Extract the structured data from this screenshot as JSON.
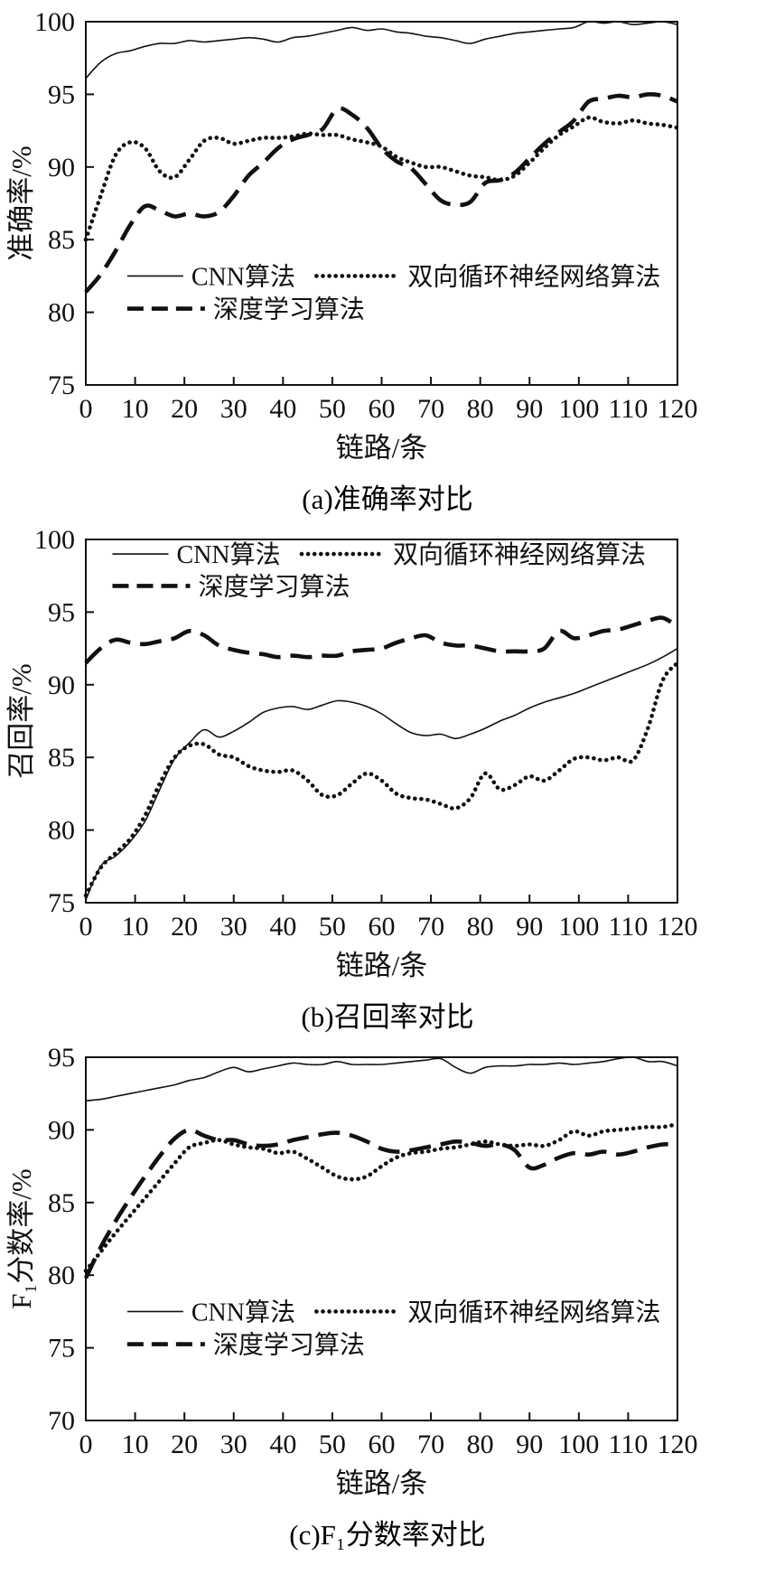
{
  "colors": {
    "line": "#111111",
    "text": "#000000",
    "background": "#ffffff"
  },
  "chart_data": [
    {
      "type": "line",
      "caption": "(a)准确率对比",
      "xlabel": "链路/条",
      "ylabel": "准确率/%",
      "xlim": [
        0,
        120
      ],
      "xtick_step": 10,
      "ylim": [
        75,
        100
      ],
      "ytick_step": 5,
      "grid": false,
      "legend": {
        "position": "inside-bottom-left",
        "x": 0.07,
        "y": 0.7,
        "row_gap": 0.09,
        "rows": [
          [
            0,
            1
          ],
          [
            2
          ]
        ]
      },
      "x": [
        0,
        3,
        6,
        9,
        12,
        15,
        18,
        21,
        24,
        27,
        30,
        33,
        36,
        39,
        42,
        45,
        48,
        51,
        54,
        57,
        60,
        63,
        66,
        69,
        72,
        75,
        78,
        81,
        84,
        87,
        90,
        93,
        96,
        99,
        102,
        105,
        108,
        111,
        114,
        117,
        120
      ],
      "series": [
        {
          "name": "CNN算法",
          "style": "solid",
          "values": [
            96.1,
            97.2,
            97.8,
            98.0,
            98.3,
            98.5,
            98.5,
            98.7,
            98.6,
            98.7,
            98.8,
            98.9,
            98.8,
            98.6,
            98.9,
            99.0,
            99.2,
            99.4,
            99.6,
            99.4,
            99.5,
            99.3,
            99.2,
            99.0,
            98.9,
            98.7,
            98.5,
            98.8,
            99.0,
            99.2,
            99.3,
            99.4,
            99.5,
            99.6,
            100.0,
            99.9,
            100.0,
            99.8,
            99.9,
            100.0,
            99.8
          ]
        },
        {
          "name": "双向循环神经网络算法",
          "style": "dotted",
          "values": [
            85.0,
            88.0,
            90.8,
            91.7,
            91.3,
            89.7,
            89.3,
            90.5,
            91.8,
            92.0,
            91.6,
            91.8,
            92.0,
            92.0,
            92.1,
            92.3,
            92.2,
            92.2,
            91.9,
            91.7,
            91.4,
            90.7,
            90.3,
            90.0,
            90.0,
            89.7,
            89.4,
            89.3,
            89.1,
            89.4,
            90.3,
            91.3,
            92.2,
            92.8,
            93.4,
            93.1,
            93.0,
            93.2,
            93.0,
            92.9,
            92.7
          ]
        },
        {
          "name": "深度学习算法",
          "style": "dashed",
          "values": [
            81.4,
            82.6,
            84.2,
            86.0,
            87.3,
            87.0,
            86.6,
            86.8,
            86.6,
            86.9,
            88.0,
            89.4,
            90.3,
            91.3,
            91.9,
            92.2,
            92.6,
            94.0,
            93.6,
            92.7,
            91.3,
            90.4,
            89.9,
            88.8,
            87.7,
            87.4,
            87.6,
            88.9,
            89.1,
            89.6,
            90.6,
            91.6,
            92.4,
            93.2,
            94.5,
            94.7,
            94.9,
            94.8,
            95.0,
            94.9,
            94.5
          ]
        }
      ]
    },
    {
      "type": "line",
      "caption": "(b)召回率对比",
      "xlabel": "链路/条",
      "ylabel": "召回率/%",
      "xlim": [
        0,
        120
      ],
      "xtick_step": 10,
      "ylim": [
        75,
        100
      ],
      "ytick_step": 5,
      "grid": false,
      "legend": {
        "position": "inside-top-left",
        "x": 0.045,
        "y": 0.04,
        "row_gap": 0.088,
        "rows": [
          [
            0,
            1
          ],
          [
            2
          ]
        ]
      },
      "x": [
        0,
        3,
        6,
        9,
        12,
        15,
        18,
        21,
        24,
        27,
        30,
        33,
        36,
        39,
        42,
        45,
        48,
        51,
        54,
        57,
        60,
        63,
        66,
        69,
        72,
        75,
        78,
        81,
        84,
        87,
        90,
        93,
        96,
        99,
        102,
        105,
        108,
        111,
        114,
        117,
        120
      ],
      "series": [
        {
          "name": "CNN算法",
          "style": "solid",
          "values": [
            75.2,
            77.5,
            78.2,
            79.2,
            80.6,
            82.8,
            84.9,
            86.0,
            86.9,
            86.4,
            86.8,
            87.4,
            88.1,
            88.4,
            88.5,
            88.3,
            88.6,
            88.9,
            88.8,
            88.5,
            88.0,
            87.3,
            86.7,
            86.5,
            86.6,
            86.3,
            86.6,
            87.0,
            87.5,
            87.9,
            88.4,
            88.8,
            89.1,
            89.4,
            89.8,
            90.2,
            90.6,
            91.0,
            91.4,
            91.9,
            92.5
          ]
        },
        {
          "name": "双向循环神经网络算法",
          "style": "dotted",
          "values": [
            75.5,
            77.4,
            78.4,
            79.4,
            81.0,
            83.2,
            85.0,
            85.8,
            85.9,
            85.2,
            85.0,
            84.4,
            84.1,
            84.0,
            84.1,
            83.4,
            82.4,
            82.4,
            83.2,
            83.9,
            83.4,
            82.5,
            82.2,
            82.1,
            81.8,
            81.5,
            82.2,
            83.9,
            82.8,
            83.1,
            83.7,
            83.4,
            84.1,
            84.9,
            85.0,
            84.8,
            85.0,
            84.8,
            87.0,
            90.3,
            91.5
          ]
        },
        {
          "name": "深度学习算法",
          "style": "dashed",
          "values": [
            91.5,
            92.5,
            93.1,
            92.9,
            92.8,
            93.0,
            93.2,
            93.7,
            93.4,
            92.7,
            92.4,
            92.2,
            92.1,
            91.9,
            92.0,
            91.9,
            92.0,
            92.0,
            92.3,
            92.4,
            92.5,
            92.9,
            93.2,
            93.4,
            92.9,
            92.7,
            92.7,
            92.5,
            92.3,
            92.3,
            92.3,
            92.5,
            93.7,
            93.2,
            93.4,
            93.7,
            93.8,
            94.1,
            94.4,
            94.6,
            94.0
          ]
        }
      ]
    },
    {
      "type": "line",
      "caption": "(c)F₁分数率对比",
      "xlabel": "链路/条",
      "ylabel": "F₁分数率/%",
      "xlim": [
        0,
        120
      ],
      "xtick_step": 10,
      "ylim": [
        70,
        95
      ],
      "ytick_step": 5,
      "grid": false,
      "legend": {
        "position": "inside-bottom-left",
        "x": 0.07,
        "y": 0.7,
        "row_gap": 0.09,
        "rows": [
          [
            0,
            1
          ],
          [
            2
          ]
        ]
      },
      "x": [
        0,
        3,
        6,
        9,
        12,
        15,
        18,
        21,
        24,
        27,
        30,
        33,
        36,
        39,
        42,
        45,
        48,
        51,
        54,
        57,
        60,
        63,
        66,
        69,
        72,
        75,
        78,
        81,
        84,
        87,
        90,
        93,
        96,
        99,
        102,
        105,
        108,
        111,
        114,
        117,
        120
      ],
      "series": [
        {
          "name": "CNN算法",
          "style": "solid",
          "values": [
            92.0,
            92.1,
            92.3,
            92.5,
            92.7,
            92.9,
            93.1,
            93.4,
            93.6,
            94.0,
            94.3,
            94.0,
            94.2,
            94.4,
            94.6,
            94.5,
            94.5,
            94.7,
            94.5,
            94.5,
            94.5,
            94.6,
            94.7,
            94.8,
            94.9,
            94.3,
            93.9,
            94.3,
            94.4,
            94.4,
            94.5,
            94.5,
            94.6,
            94.5,
            94.6,
            94.7,
            94.9,
            95.0,
            94.7,
            94.7,
            94.4
          ]
        },
        {
          "name": "双向循环神经网络算法",
          "style": "dotted",
          "values": [
            80.3,
            81.6,
            82.9,
            84.1,
            85.3,
            86.5,
            87.7,
            88.8,
            89.1,
            89.3,
            89.0,
            88.8,
            88.7,
            88.4,
            88.5,
            88.0,
            87.4,
            86.8,
            86.6,
            86.8,
            87.5,
            88.1,
            88.4,
            88.5,
            88.7,
            88.8,
            89.0,
            89.2,
            89.0,
            88.9,
            89.0,
            88.9,
            89.3,
            89.9,
            89.6,
            89.9,
            90.0,
            90.1,
            90.2,
            90.2,
            90.4
          ]
        },
        {
          "name": "深度学习算法",
          "style": "dashed",
          "values": [
            79.8,
            81.9,
            83.7,
            85.3,
            86.8,
            88.2,
            89.4,
            90.0,
            89.6,
            89.3,
            89.3,
            89.0,
            88.9,
            89.0,
            89.3,
            89.5,
            89.7,
            89.8,
            89.6,
            89.2,
            88.7,
            88.5,
            88.6,
            88.8,
            89.0,
            89.2,
            89.1,
            88.9,
            89.0,
            88.6,
            87.4,
            87.6,
            88.1,
            88.4,
            88.3,
            88.5,
            88.3,
            88.5,
            88.8,
            89.0,
            89.0
          ]
        }
      ]
    }
  ]
}
